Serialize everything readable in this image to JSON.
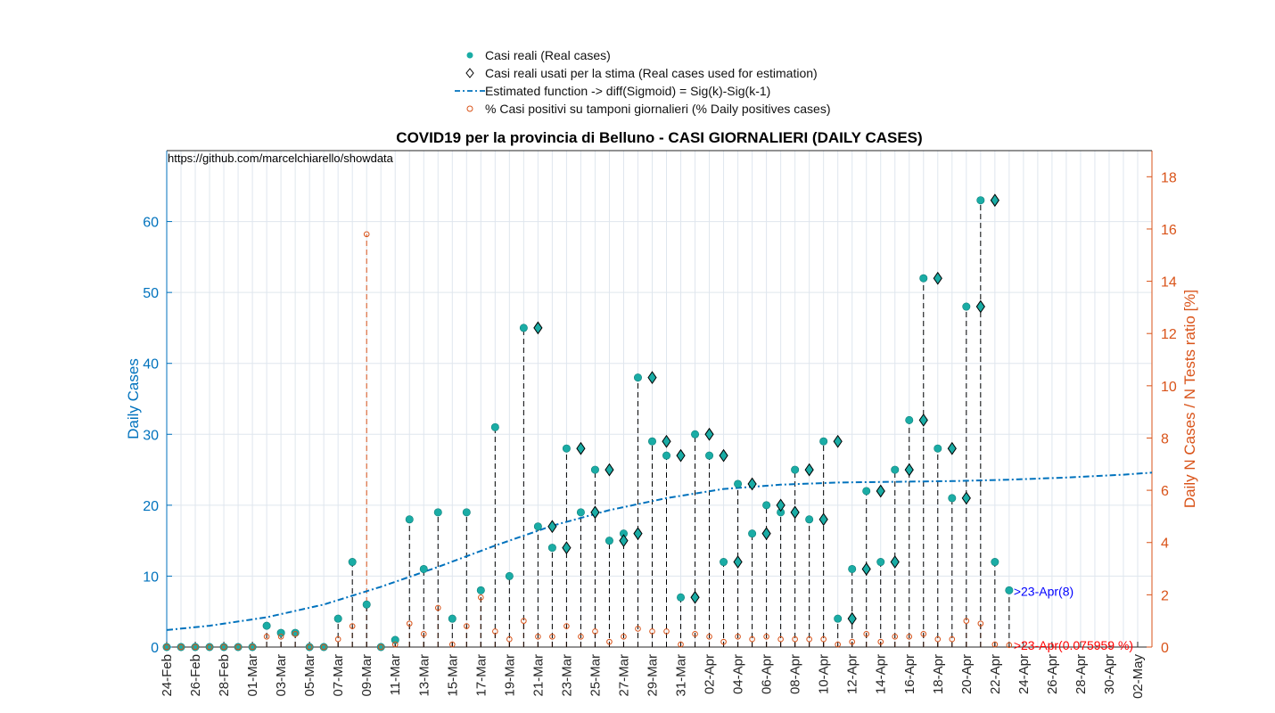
{
  "legend": {
    "real_cases": "Casi reali (Real cases)",
    "used_cases": "Casi reali usati per la stima (Real cases used for estimation)",
    "estimated": "Estimated function -> diff(Sigmoid) = Sig(k)-Sig(k-1)",
    "positives": "% Casi positivi su tamponi giornalieri (% Daily positives cases)"
  },
  "chart_data": {
    "type": "scatter",
    "title": "COVID19 per la provincia di Belluno - CASI GIORNALIERI (DAILY CASES)",
    "source_text": "https://github.com/marcelchiarello/showdata",
    "ylabel": "Daily Cases",
    "ylabel_right": "Daily N Cases / N Tests ratio [%]",
    "ylim": [
      0,
      70
    ],
    "ylim_right": [
      0,
      19
    ],
    "yticks": [
      0,
      10,
      20,
      30,
      40,
      50,
      60
    ],
    "yticks_right": [
      0,
      2,
      4,
      6,
      8,
      10,
      12,
      14,
      16,
      18
    ],
    "grid": true,
    "colors": {
      "real": "#1aaca5",
      "left_axis": "#0072bd",
      "right_axis": "#d95319",
      "fit": "#0072bd",
      "annotation_cases": "#0000ff",
      "annotation_ratio": "#ff0000"
    },
    "x_ticks": [
      "24-Feb",
      "26-Feb",
      "28-Feb",
      "01-Mar",
      "03-Mar",
      "05-Mar",
      "07-Mar",
      "09-Mar",
      "11-Mar",
      "13-Mar",
      "15-Mar",
      "17-Mar",
      "19-Mar",
      "21-Mar",
      "23-Mar",
      "25-Mar",
      "27-Mar",
      "29-Mar",
      "31-Mar",
      "02-Apr",
      "04-Apr",
      "06-Apr",
      "08-Apr",
      "10-Apr",
      "12-Apr",
      "14-Apr",
      "16-Apr",
      "18-Apr",
      "20-Apr",
      "22-Apr",
      "24-Apr",
      "26-Apr",
      "28-Apr",
      "30-Apr",
      "02-May"
    ],
    "x_start": "24-Feb",
    "x_end": "03-May",
    "series": [
      {
        "name": "Casi reali (Real cases)",
        "values": [
          0,
          0,
          0,
          0,
          0,
          0,
          0,
          3,
          2,
          2,
          0,
          0,
          4,
          12,
          6,
          0,
          1,
          18,
          11,
          19,
          4,
          19,
          8,
          31,
          10,
          45,
          17,
          14,
          28,
          19,
          25,
          15,
          16,
          38,
          29,
          27,
          7,
          30,
          27,
          12,
          23,
          16,
          20,
          19,
          25,
          18,
          29,
          4,
          11,
          22,
          12,
          25,
          32,
          52,
          28,
          21,
          48,
          63,
          12,
          8
        ]
      },
      {
        "name": "Casi reali usati per la stima (Real cases used for estimation)",
        "start_date": "21-Mar",
        "values": [
          45,
          17,
          14,
          28,
          19,
          25,
          15,
          16,
          38,
          29,
          27,
          7,
          30,
          27,
          12,
          23,
          16,
          20,
          19,
          25,
          18,
          29,
          4,
          11,
          22,
          12,
          25,
          32,
          52,
          28,
          21,
          48,
          63
        ]
      },
      {
        "name": "Estimated function -> diff(Sigmoid) = Sig(k)-Sig(k-1)",
        "points": [
          [
            "24-Feb",
            2.4
          ],
          [
            "27-Feb",
            3.0
          ],
          [
            "02-Mar",
            4.2
          ],
          [
            "06-Mar",
            6.0
          ],
          [
            "10-Mar",
            8.5
          ],
          [
            "14-Mar",
            11.3
          ],
          [
            "18-Mar",
            14.3
          ],
          [
            "22-Mar",
            17.1
          ],
          [
            "26-Mar",
            19.3
          ],
          [
            "30-Mar",
            21.0
          ],
          [
            "03-Apr",
            22.3
          ],
          [
            "07-Apr",
            22.9
          ],
          [
            "11-Apr",
            23.2
          ],
          [
            "15-Apr",
            23.3
          ],
          [
            "19-Apr",
            23.4
          ],
          [
            "23-Apr",
            23.6
          ],
          [
            "27-Apr",
            23.9
          ],
          [
            "01-May",
            24.3
          ],
          [
            "03-May",
            24.6
          ]
        ]
      },
      {
        "name": "% Casi positivi su tamponi giornalieri (% Daily positives cases)",
        "values": [
          0,
          0,
          0,
          0,
          0,
          0,
          0,
          0.4,
          0.4,
          0.5,
          0,
          0,
          0.3,
          0.8,
          15.8,
          0,
          0.1,
          0.9,
          0.5,
          1.5,
          0.1,
          0.8,
          1.9,
          0.6,
          0.3,
          1.0,
          0.4,
          0.4,
          0.8,
          0.4,
          0.6,
          0.2,
          0.4,
          0.7,
          0.6,
          0.6,
          0.1,
          0.5,
          0.4,
          0.2,
          0.4,
          0.3,
          0.4,
          0.3,
          0.3,
          0.3,
          0.3,
          0.1,
          0.2,
          0.5,
          0.2,
          0.4,
          0.4,
          0.5,
          0.3,
          0.3,
          1.0,
          0.9,
          0.1,
          0.076
        ]
      }
    ],
    "annotations": [
      {
        "text": ">23-Apr(8)",
        "x": "23-Apr",
        "y": 8
      },
      {
        "text": ">23-Apr(0.075959 %)",
        "x": "23-Apr",
        "y_right": 0.076
      }
    ]
  }
}
